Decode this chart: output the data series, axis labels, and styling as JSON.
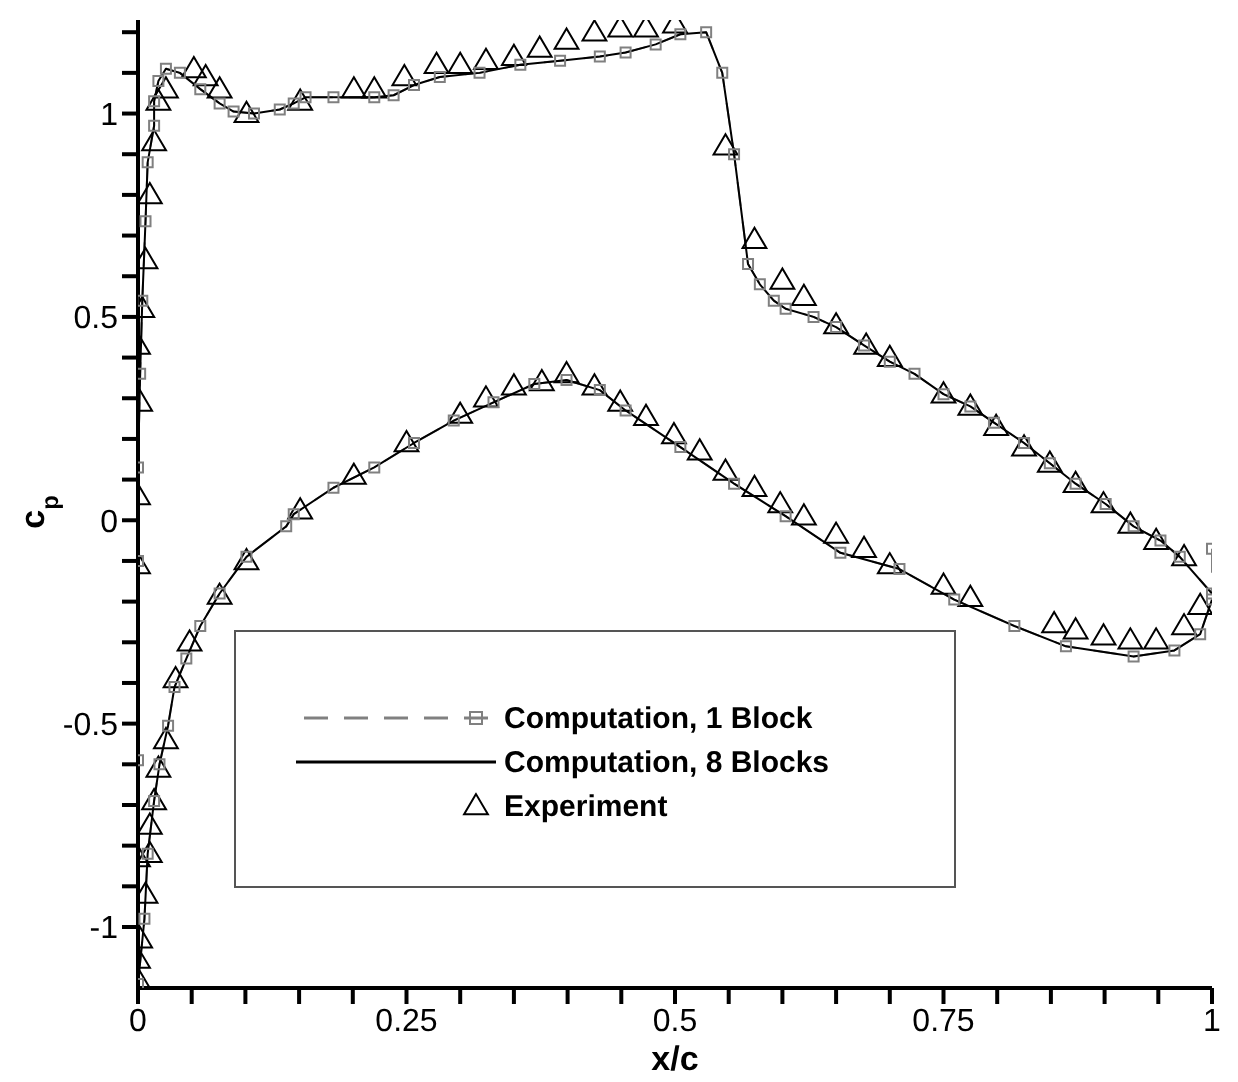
{
  "chart_data": {
    "type": "line",
    "xlabel": "x/c",
    "ylabel": "c$_{p}$",
    "xlim": [
      0,
      1
    ],
    "ylim": [
      -1.15,
      1.23
    ],
    "xticks": [
      0,
      {
        "value": 0.05,
        "label": null
      },
      {
        "value": 0.1,
        "label": null
      },
      {
        "value": 0.15,
        "label": null
      },
      {
        "value": 0.2,
        "label": null
      },
      0.25,
      {
        "value": 0.3,
        "label": null
      },
      {
        "value": 0.35,
        "label": null
      },
      {
        "value": 0.4,
        "label": null
      },
      {
        "value": 0.45,
        "label": null
      },
      0.5,
      {
        "value": 0.55,
        "label": null
      },
      {
        "value": 0.6,
        "label": null
      },
      {
        "value": 0.65,
        "label": null
      },
      {
        "value": 0.7,
        "label": null
      },
      0.75,
      {
        "value": 0.8,
        "label": null
      },
      {
        "value": 0.85,
        "label": null
      },
      {
        "value": 0.9,
        "label": null
      },
      {
        "value": 0.95,
        "label": null
      },
      1
    ],
    "yticks": [
      -1,
      {
        "value": -0.9,
        "label": null
      },
      {
        "value": -0.8,
        "label": null
      },
      {
        "value": -0.7,
        "label": null
      },
      {
        "value": -0.6,
        "label": null
      },
      -0.5,
      {
        "value": -0.4,
        "label": null
      },
      {
        "value": -0.3,
        "label": null
      },
      {
        "value": -0.2,
        "label": null
      },
      {
        "value": -0.1,
        "label": null
      },
      0,
      {
        "value": 0.1,
        "label": null
      },
      {
        "value": 0.2,
        "label": null
      },
      {
        "value": 0.3,
        "label": null
      },
      {
        "value": 0.4,
        "label": null
      },
      0.5,
      {
        "value": 0.6,
        "label": null
      },
      {
        "value": 0.7,
        "label": null
      },
      {
        "value": 0.8,
        "label": null
      },
      {
        "value": 0.9,
        "label": null
      },
      1,
      {
        "value": 1.1,
        "label": null
      },
      {
        "value": 1.2,
        "label": null
      }
    ],
    "grid": false,
    "legend": "bottom left",
    "series": [
      {
        "name": "Computation, 1 Block",
        "type": "line",
        "color": "#808080",
        "line_style": "dashed",
        "marker": "square",
        "x": [
          1,
          1,
          0.97,
          0.952,
          0.927,
          0.901,
          0.873,
          0.849,
          0.825,
          0.797,
          0.775,
          0.75,
          0.723,
          0.7,
          0.676,
          0.65,
          0.629,
          0.603,
          0.592,
          0.579,
          0.568,
          0.555,
          0.544,
          0.529,
          0.505,
          0.482,
          0.454,
          0.43,
          0.393,
          0.356,
          0.318,
          0.281,
          0.257,
          0.238,
          0.22,
          0.182,
          0.156,
          0.145,
          0.132,
          0.108,
          0.089,
          0.076,
          0.058,
          0.039,
          0.026,
          0.019,
          0.015,
          0.015,
          0.009,
          0.007,
          0.004,
          0.002,
          0,
          0,
          0,
          0,
          0.006,
          0.009,
          0.015,
          0.02,
          0.028,
          0.034,
          0.045,
          0.058,
          0.076,
          0.101,
          0.138,
          0.145,
          0.182,
          0.22,
          0.257,
          0.294,
          0.331,
          0.369,
          0.399,
          0.43,
          0.454,
          0.505,
          0.555,
          0.603,
          0.654,
          0.709,
          0.76,
          0.816,
          0.864,
          0.927,
          0.965,
          0.989,
          1
        ],
        "values": [
          -0.07,
          -0.18,
          -0.09,
          -0.05,
          -0.015,
          0.04,
          0.09,
          0.14,
          0.19,
          0.24,
          0.28,
          0.31,
          0.36,
          0.39,
          0.43,
          0.475,
          0.5,
          0.52,
          0.54,
          0.58,
          0.63,
          0.9,
          1.1,
          1.2,
          1.195,
          1.17,
          1.15,
          1.14,
          1.13,
          1.12,
          1.1,
          1.09,
          1.07,
          1.045,
          1.04,
          1.04,
          1.04,
          1.025,
          1.01,
          1,
          1.005,
          1.025,
          1.06,
          1.1,
          1.11,
          1.08,
          1.03,
          0.97,
          0.88,
          0.735,
          0.54,
          0.36,
          0.13,
          -0.1,
          -0.59,
          -1.14,
          -0.98,
          -0.82,
          -0.69,
          -0.6,
          -0.505,
          -0.41,
          -0.34,
          -0.26,
          -0.18,
          -0.09,
          -0.015,
          0.015,
          0.08,
          0.13,
          0.19,
          0.245,
          0.29,
          0.335,
          0.345,
          0.32,
          0.27,
          0.18,
          0.09,
          0.01,
          -0.08,
          -0.12,
          -0.195,
          -0.26,
          -0.31,
          -0.335,
          -0.32,
          -0.28,
          -0.195
        ]
      },
      {
        "name": "Computation, 8 Blocks",
        "type": "line",
        "color": "#000000",
        "line_style": "solid",
        "marker": "none",
        "x": [
          1,
          0.97,
          0.952,
          0.927,
          0.901,
          0.873,
          0.849,
          0.825,
          0.797,
          0.775,
          0.75,
          0.723,
          0.7,
          0.676,
          0.65,
          0.629,
          0.603,
          0.592,
          0.579,
          0.568,
          0.555,
          0.544,
          0.529,
          0.505,
          0.482,
          0.454,
          0.43,
          0.393,
          0.356,
          0.318,
          0.281,
          0.257,
          0.238,
          0.22,
          0.182,
          0.156,
          0.145,
          0.132,
          0.108,
          0.089,
          0.076,
          0.058,
          0.039,
          0.026,
          0.019,
          0.015,
          0.015,
          0.009,
          0.007,
          0.004,
          0.002,
          0,
          0,
          0,
          0,
          0.006,
          0.009,
          0.015,
          0.02,
          0.028,
          0.034,
          0.045,
          0.058,
          0.076,
          0.101,
          0.138,
          0.145,
          0.182,
          0.22,
          0.257,
          0.294,
          0.331,
          0.369,
          0.399,
          0.43,
          0.454,
          0.505,
          0.555,
          0.603,
          0.654,
          0.709,
          0.76,
          0.816,
          0.864,
          0.927,
          0.965,
          0.989,
          1
        ],
        "values": [
          -0.18,
          -0.09,
          -0.05,
          -0.015,
          0.04,
          0.09,
          0.14,
          0.19,
          0.24,
          0.28,
          0.31,
          0.36,
          0.39,
          0.43,
          0.475,
          0.5,
          0.52,
          0.54,
          0.58,
          0.63,
          0.9,
          1.1,
          1.2,
          1.195,
          1.17,
          1.15,
          1.14,
          1.13,
          1.12,
          1.1,
          1.09,
          1.07,
          1.045,
          1.04,
          1.04,
          1.04,
          1.025,
          1.01,
          1,
          1.005,
          1.025,
          1.06,
          1.1,
          1.11,
          1.08,
          1.03,
          0.97,
          0.88,
          0.735,
          0.54,
          0.36,
          0.13,
          -0.1,
          -0.59,
          -1.14,
          -0.98,
          -0.82,
          -0.69,
          -0.6,
          -0.505,
          -0.41,
          -0.34,
          -0.26,
          -0.18,
          -0.09,
          -0.015,
          0.015,
          0.08,
          0.13,
          0.19,
          0.245,
          0.29,
          0.335,
          0.345,
          0.32,
          0.27,
          0.18,
          0.09,
          0.01,
          -0.08,
          -0.12,
          -0.195,
          -0.26,
          -0.31,
          -0.335,
          -0.32,
          -0.28,
          -0.195
        ]
      },
      {
        "name": "Experiment",
        "type": "scatter",
        "color": "#000000",
        "marker": "triangle",
        "x": [
          0.974,
          0.948,
          0.924,
          0.899,
          0.873,
          0.849,
          0.825,
          0.799,
          0.775,
          0.75,
          0.7,
          0.678,
          0.65,
          0.62,
          0.6,
          0.574,
          0.547,
          0.5,
          0.473,
          0.449,
          0.425,
          0.399,
          0.374,
          0.35,
          0.324,
          0.3,
          0.278,
          0.248,
          0.22,
          0.201,
          0.151,
          0.101,
          0.076,
          0.063,
          0.052,
          0.026,
          0.019,
          0.015,
          0.011,
          0.007,
          0.004,
          0,
          0.002,
          0,
          0,
          0,
          0,
          0,
          0.002,
          0.007,
          0.011,
          0.011,
          0.015,
          0.019,
          0.026,
          0.035,
          0.048,
          0.076,
          0.101,
          0.151,
          0.201,
          0.25,
          0.3,
          0.324,
          0.35,
          0.376,
          0.399,
          0.425,
          0.449,
          0.473,
          0.499,
          0.523,
          0.547,
          0.574,
          0.598,
          0.62,
          0.65,
          0.676,
          0.7,
          0.75,
          0.775,
          0.853,
          0.873,
          0.899,
          0.924,
          0.948,
          0.974,
          0.989
        ],
        "values": [
          -0.09,
          -0.05,
          -0.01,
          0.04,
          0.09,
          0.14,
          0.18,
          0.23,
          0.28,
          0.31,
          0.4,
          0.43,
          0.48,
          0.55,
          0.59,
          0.69,
          0.92,
          1.22,
          1.21,
          1.21,
          1.2,
          1.18,
          1.16,
          1.14,
          1.13,
          1.12,
          1.12,
          1.09,
          1.06,
          1.06,
          1.03,
          1,
          1.06,
          1.09,
          1.11,
          1.06,
          1.03,
          0.93,
          0.8,
          0.64,
          0.52,
          0.43,
          0.29,
          0.06,
          -0.11,
          -0.83,
          -1.08,
          -1.13,
          -1.03,
          -0.92,
          -0.82,
          -0.75,
          -0.69,
          -0.61,
          -0.54,
          -0.39,
          -0.3,
          -0.185,
          -0.1,
          0.025,
          0.11,
          0.19,
          0.26,
          0.3,
          0.33,
          0.34,
          0.36,
          0.33,
          0.29,
          0.255,
          0.21,
          0.17,
          0.12,
          0.08,
          0.04,
          0.01,
          -0.035,
          -0.07,
          -0.11,
          -0.16,
          -0.19,
          -0.255,
          -0.27,
          -0.285,
          -0.295,
          -0.295,
          -0.26,
          -0.21
        ]
      }
    ]
  }
}
